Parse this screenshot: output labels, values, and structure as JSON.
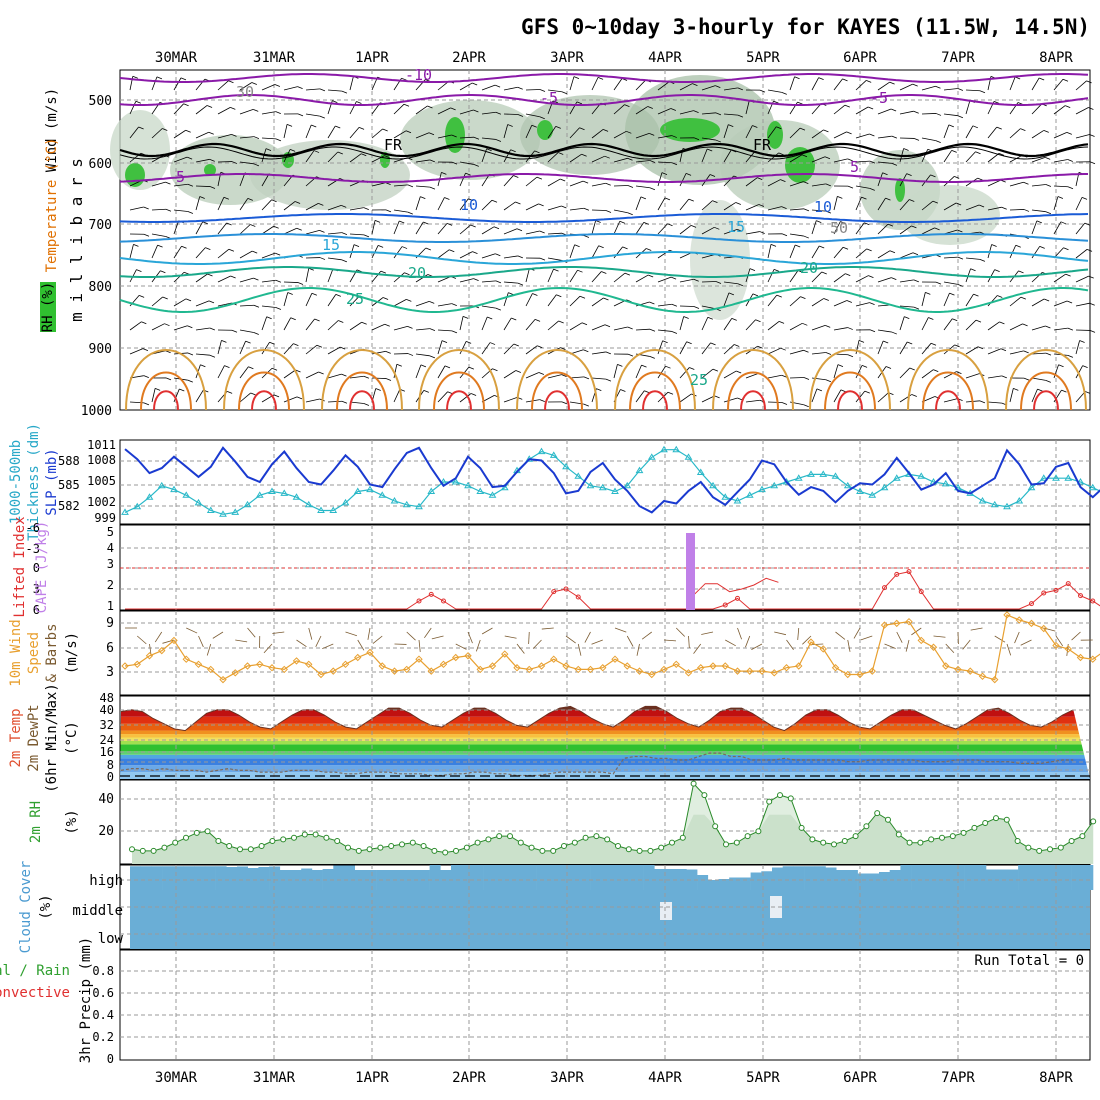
{
  "title": "GFS 0~10day 3-hourly for KAYES (11.5W, 14.5N)",
  "dates": [
    "30MAR",
    "31MAR",
    "1APR",
    "2APR",
    "3APR",
    "4APR",
    "5APR",
    "6APR",
    "7APR",
    "8APR"
  ],
  "colors": {
    "grid": "#9a9a9a",
    "purple": "#8a1aa8",
    "blue": "#1a5bd6",
    "cyan": "#2aa6d8",
    "teal": "#1aa88a",
    "orange": "#e0a030",
    "red": "#e03030",
    "green": "#30a830",
    "slp": "#1a3ad0",
    "thick": "#28b8c8",
    "lifted": "#e03030",
    "cape": "#c080e8",
    "wind10": "#e8a030",
    "cloud": "#6aaed6"
  },
  "panels": {
    "upper": {
      "y_label": "m i l l i b a r s",
      "ticks": [
        "500",
        "600",
        "700",
        "800",
        "900",
        "1000"
      ],
      "legend": [
        "Wind (m/s)",
        "Temperature (°C)",
        "RH (%)"
      ],
      "contour_labels": [
        "-10",
        "-5",
        "-5",
        "5",
        "5",
        "10",
        "10",
        "15",
        "15",
        "20",
        "20",
        "25",
        "25",
        "FR",
        "FR",
        "30",
        "50"
      ]
    },
    "thickness": {
      "left_labels": [
        "588",
        "585",
        "582"
      ],
      "right_labels": [
        "1011",
        "1008",
        "1005",
        "1002",
        "999"
      ],
      "legend": [
        "1000-500mb",
        "Thickness (dm)",
        "SLP (mb)"
      ]
    },
    "cape": {
      "left_ticks": [
        "-6",
        "-3",
        "0",
        "3",
        "6"
      ],
      "right_ticks": [
        "5",
        "4",
        "3",
        "2",
        "1"
      ],
      "legend": [
        "Lifted Index",
        "CAPE (J/kg)"
      ]
    },
    "wind10": {
      "ticks": [
        "9",
        "6",
        "3"
      ],
      "legend": [
        "10m Wind",
        "Speed",
        "& Barbs",
        "(m/s)"
      ]
    },
    "temp2m": {
      "ticks": [
        "48",
        "40",
        "32",
        "24",
        "16",
        "8",
        "0"
      ],
      "legend": [
        "2m Temp",
        "2m DewPt",
        "(6hr Min/Max)",
        "(°C)"
      ]
    },
    "rh2m": {
      "ticks": [
        "40",
        "20"
      ],
      "legend": [
        "2m RH",
        "(%)"
      ]
    },
    "cloud": {
      "ticks": [
        "high",
        "middle",
        "low"
      ],
      "legend": [
        "Cloud Cover",
        "(%)"
      ]
    },
    "precip": {
      "ticks": [
        "0.8",
        "0.6",
        "0.4",
        "0.2",
        "0"
      ],
      "legend": [
        "Total / Rain",
        "Convective",
        "3hr Precip (mm)"
      ],
      "run_total": "Run Total = 0"
    }
  },
  "chart_data": [
    {
      "type": "line",
      "title": "Sea Level Pressure (mb)",
      "x_unit": "forecast steps (3-hourly)",
      "ylim": [
        999,
        1011
      ],
      "series": [
        {
          "name": "SLP",
          "values": [
            1010.2,
            1008.6,
            1006.4,
            1007.2,
            1009.0,
            1007.4,
            1005.8,
            1007.4,
            1010.4,
            1008.2,
            1005.8,
            1005.0,
            1007.8,
            1009.8,
            1007.2,
            1005.0,
            1004.6,
            1006.8,
            1009.2,
            1007.4,
            1004.6,
            1004.2,
            1007.0,
            1009.6,
            1010.4,
            1007.2,
            1004.4,
            1005.6,
            1009.0,
            1007.2,
            1004.2,
            1004.4,
            1006.6,
            1008.6,
            1008.4,
            1006.4,
            1003.2,
            1003.6,
            1006.6,
            1008.0,
            1005.4,
            1003.6,
            1001.2,
            1000.2,
            1002.0,
            1001.6,
            1003.6,
            1005.0,
            1002.6,
            1001.4,
            1003.4,
            1005.4,
            1008.4,
            1007.8,
            1005.0,
            1003.0,
            1004.2,
            1003.6,
            1001.8,
            1003.6,
            1004.8,
            1004.6,
            1006.2,
            1008.8,
            1006.4,
            1003.8,
            1004.6,
            1006.4,
            1003.6,
            1003.2,
            1004.4,
            1005.6,
            1010.0,
            1007.8,
            1004.6,
            1004.8,
            1007.4,
            1008.0,
            1004.2,
            1002.6,
            1004.4,
            1006.4,
            1009.0,
            1006.8,
            1003.8,
            1004.8,
            1004.0,
            1002.0,
            1002.4,
            1006.4
          ]
        }
      ]
    },
    {
      "type": "line",
      "title": "1000-500mb Thickness (dm)",
      "ylim": [
        581,
        589
      ],
      "series": [
        {
          "name": "Thickness",
          "values": [
            581.8,
            582.4,
            583.4,
            584.6,
            584.2,
            583.6,
            582.8,
            582.0,
            581.6,
            581.8,
            582.6,
            583.6,
            584.0,
            583.8,
            583.4,
            582.6,
            582.0,
            582.0,
            582.8,
            584.0,
            584.2,
            583.6,
            583.0,
            582.6,
            582.4,
            584.0,
            585.0,
            585.0,
            584.6,
            584.0,
            583.6,
            584.4,
            586.2,
            587.4,
            588.2,
            587.8,
            586.6,
            585.6,
            584.6,
            584.4,
            584.0,
            584.6,
            586.2,
            587.6,
            588.4,
            588.4,
            587.6,
            586.0,
            584.6,
            583.4,
            583.0,
            583.6,
            584.2,
            584.6,
            585.0,
            585.4,
            585.8,
            585.8,
            585.6,
            584.6,
            584.0,
            583.6,
            584.4,
            585.4,
            585.8,
            585.6,
            585.0,
            584.8,
            584.4,
            583.8,
            583.0,
            582.6,
            582.4,
            583.0,
            584.4,
            585.4,
            585.4,
            585.4,
            585.0,
            584.4,
            583.8,
            583.4,
            583.6,
            584.2,
            585.0,
            584.2,
            583.6,
            583.0,
            582.6,
            582.6
          ]
        }
      ]
    },
    {
      "type": "line",
      "title": "Lifted Index",
      "ylim": [
        -6,
        6
      ],
      "series": [
        {
          "name": "Lifted Index",
          "values": [
            6,
            6,
            6,
            6,
            6,
            6,
            6,
            6,
            6,
            6,
            6,
            6,
            6,
            6,
            6,
            6,
            6,
            6,
            6,
            6,
            6,
            6,
            6,
            6,
            4.8,
            3.8,
            4.8,
            6,
            6,
            6,
            6,
            6,
            6,
            6,
            6,
            3.4,
            3.0,
            4.2,
            6,
            6,
            6,
            6,
            6,
            6,
            6,
            6,
            6,
            6,
            6,
            5.4,
            4.4,
            6,
            6,
            6,
            6,
            6,
            6,
            6,
            6,
            6,
            6,
            6,
            2.8,
            0.8,
            0.4,
            3.4,
            6,
            6,
            6,
            6,
            6,
            6,
            6,
            6,
            5.2,
            3.6,
            3.2,
            2.2,
            4.0,
            4.8,
            6,
            6,
            5.6,
            6,
            6,
            6,
            6,
            5.4,
            6,
            6
          ]
        },
        {
          "name": "Lifted Index (4APR)",
          "values": [
            4.0,
            2.2,
            2.2,
            3.4,
            3.0,
            2.4,
            1.4,
            2.0
          ]
        }
      ]
    },
    {
      "type": "bar",
      "title": "CAPE (J/kg)",
      "categories": [
        "4APR 06Z"
      ],
      "values": [
        5000
      ],
      "ylim": [
        0,
        5000
      ]
    },
    {
      "type": "line",
      "title": "10m Wind Speed (m/s)",
      "ylim": [
        0,
        9.5
      ],
      "series": [
        {
          "name": "Speed",
          "values": [
            3.4,
            3.6,
            4.6,
            5.2,
            6.4,
            4.2,
            3.6,
            3.0,
            1.8,
            2.6,
            3.4,
            3.6,
            3.2,
            3.0,
            4.0,
            3.6,
            2.4,
            2.8,
            3.6,
            4.4,
            5.0,
            3.4,
            2.8,
            3.0,
            4.2,
            2.8,
            3.6,
            4.4,
            4.6,
            3.0,
            3.4,
            4.8,
            3.2,
            3.0,
            3.4,
            4.2,
            3.4,
            3.0,
            3.0,
            3.2,
            4.2,
            3.4,
            2.8,
            2.4,
            3.0,
            3.6,
            2.6,
            3.2,
            3.4,
            3.4,
            2.8,
            2.8,
            2.8,
            2.6,
            3.2,
            3.4,
            6.2,
            5.4,
            3.2,
            2.4,
            2.4,
            2.8,
            8.2,
            8.4,
            8.6,
            6.4,
            5.6,
            3.4,
            3.0,
            2.8,
            2.2,
            1.8,
            9.4,
            8.8,
            8.4,
            7.8,
            5.8,
            5.4,
            4.4,
            4.2,
            5.2,
            4.6,
            3.4,
            3.6,
            6.0,
            6.2,
            4.2,
            1.4,
            1.8,
            2.8,
            5.0
          ]
        }
      ]
    },
    {
      "type": "area",
      "title": "2m Temp (°C)",
      "ylim": [
        0,
        48
      ],
      "series": [
        {
          "name": "Temp",
          "values": [
            39,
            40,
            39,
            35,
            32,
            29,
            28,
            33,
            38,
            40,
            40,
            37,
            33,
            30,
            29,
            33,
            37,
            40,
            40,
            37,
            33,
            30,
            29,
            33,
            37,
            41,
            41,
            38,
            34,
            31,
            30,
            34,
            38,
            41,
            41,
            38,
            34,
            31,
            30,
            34,
            38,
            41,
            42,
            39,
            35,
            32,
            30,
            34,
            39,
            42,
            42,
            39,
            35,
            32,
            30,
            34,
            39,
            41,
            41,
            38,
            34,
            30,
            28,
            32,
            37,
            40,
            40,
            37,
            33,
            30,
            29,
            33,
            37,
            40,
            40,
            37,
            34,
            31,
            29,
            32,
            36,
            40,
            41,
            38,
            34,
            31,
            30,
            33,
            37,
            40
          ]
        },
        {
          "name": "DewPt",
          "values": [
            5,
            6,
            6,
            5,
            6,
            5,
            5,
            5,
            4,
            5,
            6,
            5,
            5,
            4,
            4,
            4,
            5,
            5,
            5,
            4,
            4,
            3,
            3,
            4,
            4,
            4,
            3,
            3,
            3,
            2,
            2,
            3,
            3,
            4,
            4,
            3,
            3,
            2,
            2,
            2,
            3,
            4,
            4,
            4,
            4,
            4,
            3,
            12,
            13,
            13,
            12,
            12,
            11,
            11,
            13,
            15,
            15,
            13,
            13,
            11,
            11,
            11,
            12,
            11,
            11,
            11,
            11,
            11,
            10,
            10,
            11,
            11,
            11,
            11,
            11,
            10,
            10,
            10,
            11,
            11,
            11,
            10,
            10,
            10,
            9,
            9,
            9,
            10,
            11,
            11
          ]
        }
      ]
    },
    {
      "type": "area",
      "title": "2m RH (%)",
      "ylim": [
        0,
        50
      ],
      "series": [
        {
          "name": "RH",
          "values": [
            9,
            8,
            8,
            10,
            13,
            16,
            19,
            20,
            14,
            11,
            9,
            9,
            11,
            14,
            15,
            16,
            18,
            18,
            16,
            14,
            10,
            8,
            9,
            10,
            11,
            12,
            13,
            11,
            8,
            7,
            8,
            10,
            13,
            15,
            17,
            17,
            13,
            10,
            8,
            8,
            11,
            13,
            16,
            17,
            15,
            11,
            9,
            8,
            8,
            10,
            13,
            16,
            49,
            42,
            23,
            12,
            13,
            17,
            20,
            38,
            42,
            40,
            22,
            15,
            13,
            12,
            14,
            17,
            23,
            31,
            27,
            18,
            13,
            13,
            15,
            16,
            17,
            19,
            22,
            25,
            28,
            27,
            14,
            10,
            8,
            9,
            10,
            14,
            17,
            26
          ]
        }
      ]
    },
    {
      "type": "bar",
      "title": "Cloud Cover (%) - high",
      "ylim": [
        0,
        100
      ],
      "series": [
        {
          "name": "high",
          "values": [
            95,
            95,
            95,
            95,
            95,
            95,
            95,
            95,
            95,
            92,
            94,
            88,
            92,
            94,
            80,
            80,
            86,
            80,
            84,
            98,
            98,
            80,
            80,
            80,
            80,
            80,
            80,
            80,
            100,
            80,
            100,
            100,
            100,
            100,
            100,
            100,
            100,
            100,
            100,
            100,
            100,
            100,
            100,
            100,
            100,
            100,
            100,
            100,
            100,
            84,
            84,
            84,
            82,
            60,
            40,
            44,
            50,
            50,
            70,
            75,
            90,
            95,
            95,
            95,
            95,
            90,
            80,
            80,
            66,
            66,
            72,
            80,
            100,
            100,
            100,
            100,
            100,
            100,
            100,
            100,
            82,
            82,
            82,
            100,
            100,
            100,
            100,
            100,
            100,
            100
          ]
        }
      ]
    },
    {
      "type": "line",
      "title": "3hr Precip (mm)",
      "ylim": [
        0,
        1
      ],
      "series": [
        {
          "name": "Total",
          "values": [
            0,
            0,
            0,
            0,
            0,
            0,
            0,
            0,
            0,
            0
          ]
        }
      ]
    }
  ]
}
